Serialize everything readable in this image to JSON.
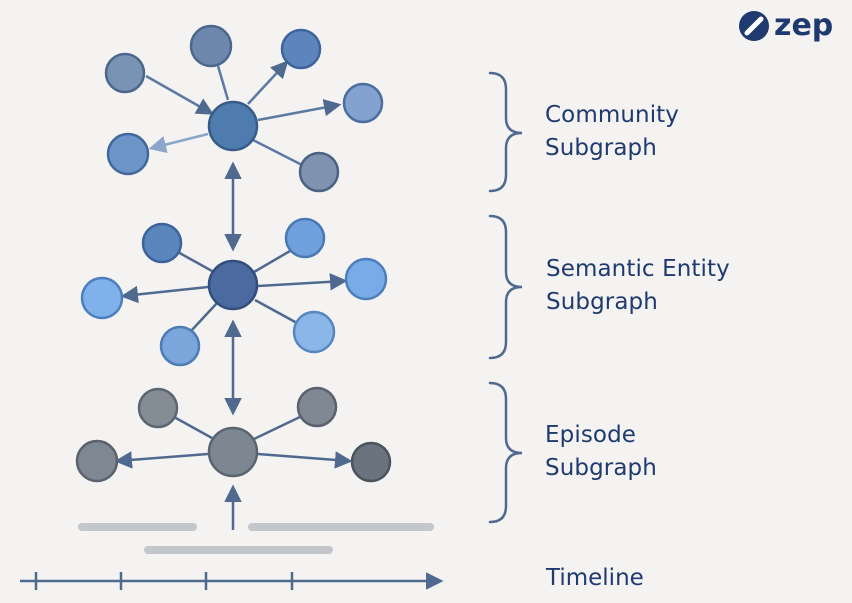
{
  "logo": {
    "text": "zep",
    "icon": "zep-logo-icon"
  },
  "layers": [
    {
      "id": "community",
      "title_line1": "Community",
      "title_line2": "Subgraph"
    },
    {
      "id": "semantic",
      "title_line1": "Semantic Entity",
      "title_line2": "Subgraph"
    },
    {
      "id": "episode",
      "title_line1": "Episode",
      "title_line2": "Subgraph"
    }
  ],
  "timeline": {
    "label": "Timeline"
  },
  "colors": {
    "background": "#f4f3f2",
    "text": "#1f3a6e",
    "edge": "#4f6a8e",
    "community_hub": "#4f7cae",
    "community_node": "#6f8fbc",
    "semantic_hub": "#4a6aa0",
    "semantic_node": "#7aa9df",
    "episode_hub": "#7c8792",
    "episode_node": "#7f8892",
    "log_bar": "#c3c6ca"
  }
}
